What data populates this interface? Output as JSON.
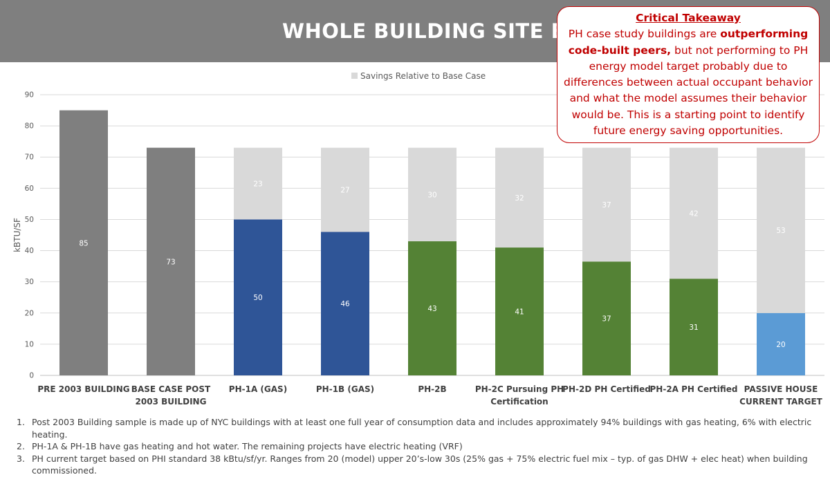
{
  "slide_title": "WHOLE BUILDING SITE EUI",
  "callout": {
    "heading": "Critical Takeaway",
    "text_before": "PH case study buildings are ",
    "text_bold": "outperforming code-built peers,",
    "text_after": " but not performing to PH energy model target probably due to differences between actual occupant behavior and what the model assumes their behavior would be. This is a starting point to identify future energy saving opportunities."
  },
  "chart_data": {
    "type": "bar",
    "stacked": true,
    "ylabel": "kBTU/SF",
    "ylim": [
      0,
      90
    ],
    "yticks": [
      0,
      10,
      20,
      30,
      40,
      50,
      60,
      70,
      80,
      90
    ],
    "grid": true,
    "legend_position": "top",
    "categories": [
      [
        "PRE 2003 BUILDING"
      ],
      [
        "BASE CASE POST",
        "2003 BUILDING"
      ],
      [
        "PH-1A (GAS)"
      ],
      [
        "PH-1B (GAS)"
      ],
      [
        "PH-2B"
      ],
      [
        "PH-2C Pursuing PH",
        "Certification"
      ],
      [
        "PH-2D PH Certified"
      ],
      [
        "PH-2A PH Certified"
      ],
      [
        "PASSIVE HOUSE",
        "CURRENT TARGET"
      ]
    ],
    "series": [
      {
        "name": "Site EUI",
        "values": [
          85,
          73,
          50,
          46,
          43,
          41,
          36.5,
          31,
          20
        ],
        "labels": [
          "85",
          "73",
          "50",
          "46",
          "43",
          "41",
          "37",
          "31",
          "20"
        ],
        "colors": [
          "#7f7f7f",
          "#7f7f7f",
          "#2f5597",
          "#2f5597",
          "#548235",
          "#548235",
          "#548235",
          "#548235",
          "#5b9bd5"
        ]
      },
      {
        "name": "Savings Relative to Base Case",
        "values": [
          0,
          0,
          23,
          27,
          30,
          32,
          36.5,
          42,
          53
        ],
        "labels": [
          "",
          "",
          "23",
          "27",
          "30",
          "32",
          "37",
          "42",
          "53"
        ],
        "color": "#d9d9d9"
      }
    ],
    "legend": [
      "Savings Relative to Base Case"
    ]
  },
  "footnotes": [
    {
      "num": "1.",
      "text": "Post 2003 Building sample is made up of NYC buildings with at least one full year of consumption data and includes approximately 94% buildings with gas heating, 6% with electric heating."
    },
    {
      "num": "2.",
      "text": "PH-1A & PH-1B have gas heating and hot water. The remaining projects have electric heating (VRF)"
    },
    {
      "num": "3.",
      "text": "PH current target based on PHI standard 38 kBtu/sf/yr. Ranges from 20 (model) upper 20’s-low 30s (25% gas + 75% electric fuel mix – typ. of gas DHW + elec heat) when building commissioned."
    }
  ]
}
